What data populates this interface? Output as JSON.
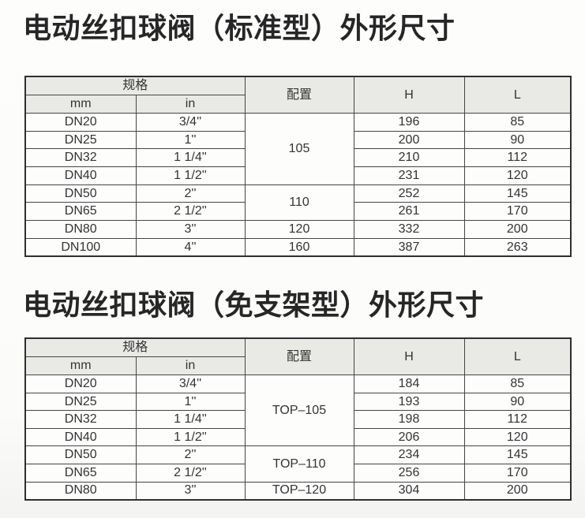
{
  "colors": {
    "header_bg": "#e9e9e6",
    "cell_bg": "#fdfdfc",
    "border": "#454545",
    "title_text": "#262626",
    "cell_text": "#333333"
  },
  "sections": [
    {
      "title": "电动丝扣球阀（标准型）外形尺寸",
      "table": {
        "header": {
          "spec_label": "规格",
          "mm_label": "mm",
          "in_label": "in",
          "config_label": "配置",
          "h_label": "H",
          "l_label": "L"
        },
        "rows": [
          {
            "mm": "DN20",
            "in": "3/4''",
            "config": "105",
            "config_rowspan": 4,
            "h": "196",
            "l": "85"
          },
          {
            "mm": "DN25",
            "in": "1''",
            "h": "200",
            "l": "90"
          },
          {
            "mm": "DN32",
            "in": "1 1/4''",
            "h": "210",
            "l": "112"
          },
          {
            "mm": "DN40",
            "in": "1 1/2''",
            "h": "231",
            "l": "120"
          },
          {
            "mm": "DN50",
            "in": "2''",
            "config": "110",
            "config_rowspan": 2,
            "h": "252",
            "l": "145"
          },
          {
            "mm": "DN65",
            "in": "2 1/2''",
            "h": "261",
            "l": "170"
          },
          {
            "mm": "DN80",
            "in": "3''",
            "config": "120",
            "config_rowspan": 1,
            "h": "332",
            "l": "200"
          },
          {
            "mm": "DN100",
            "in": "4''",
            "config": "160",
            "config_rowspan": 1,
            "h": "387",
            "l": "263"
          }
        ]
      }
    },
    {
      "title": "电动丝扣球阀（免支架型）外形尺寸",
      "table": {
        "header": {
          "spec_label": "规格",
          "mm_label": "mm",
          "in_label": "in",
          "config_label": "配置",
          "h_label": "H",
          "l_label": "L"
        },
        "rows": [
          {
            "mm": "DN20",
            "in": "3/4''",
            "config": "TOP–105",
            "config_rowspan": 4,
            "h": "184",
            "l": "85"
          },
          {
            "mm": "DN25",
            "in": "1''",
            "h": "193",
            "l": "90"
          },
          {
            "mm": "DN32",
            "in": "1 1/4''",
            "h": "198",
            "l": "112"
          },
          {
            "mm": "DN40",
            "in": "1 1/2''",
            "h": "206",
            "l": "120"
          },
          {
            "mm": "DN50",
            "in": "2''",
            "config": "TOP–110",
            "config_rowspan": 2,
            "h": "234",
            "l": "145"
          },
          {
            "mm": "DN65",
            "in": "2 1/2''",
            "h": "256",
            "l": "170"
          },
          {
            "mm": "DN80",
            "in": "3''",
            "config": "TOP–120",
            "config_rowspan": 1,
            "h": "304",
            "l": "200"
          }
        ]
      }
    }
  ]
}
